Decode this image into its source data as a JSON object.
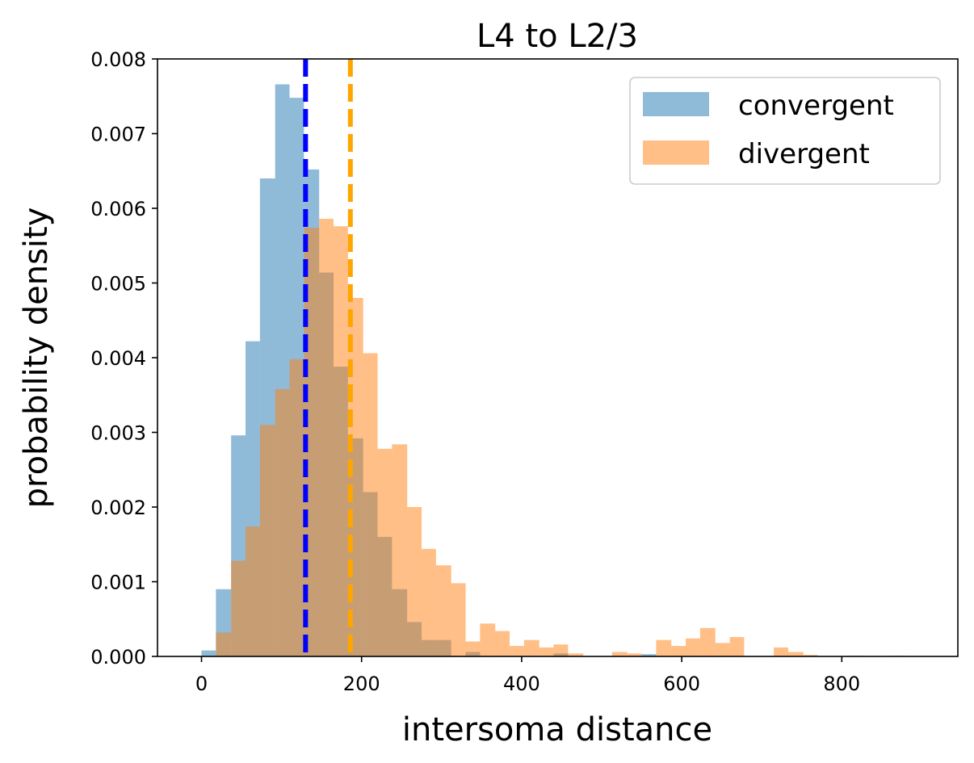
{
  "chart_data": {
    "type": "histogram",
    "title": "L4 to L2/3",
    "xlabel": "intersoma distance",
    "ylabel": "probability density",
    "xlim": [
      -55,
      945
    ],
    "ylim": [
      0,
      0.008
    ],
    "xticks": [
      0,
      200,
      400,
      600,
      800
    ],
    "xtick_labels": [
      "0",
      "200",
      "400",
      "600",
      "800"
    ],
    "yticks": [
      0.0,
      0.001,
      0.002,
      0.003,
      0.004,
      0.005,
      0.006,
      0.007,
      0.008
    ],
    "ytick_labels": [
      "0.000",
      "0.001",
      "0.002",
      "0.003",
      "0.004",
      "0.005",
      "0.006",
      "0.007",
      "0.008"
    ],
    "grid": false,
    "legend_position": "top-right",
    "series": [
      {
        "name": "convergent",
        "color": "#1f77b4",
        "opacity": 0.5,
        "bins": [
          {
            "x0": 0,
            "x1": 18,
            "y": 8e-05
          },
          {
            "x0": 18,
            "x1": 37,
            "y": 0.0009
          },
          {
            "x0": 37,
            "x1": 55,
            "y": 0.00296
          },
          {
            "x0": 55,
            "x1": 73,
            "y": 0.00422
          },
          {
            "x0": 73,
            "x1": 92,
            "y": 0.0064
          },
          {
            "x0": 92,
            "x1": 110,
            "y": 0.00766
          },
          {
            "x0": 110,
            "x1": 128,
            "y": 0.00748
          },
          {
            "x0": 128,
            "x1": 147,
            "y": 0.00652
          },
          {
            "x0": 147,
            "x1": 165,
            "y": 0.00514
          },
          {
            "x0": 165,
            "x1": 183,
            "y": 0.00388
          },
          {
            "x0": 183,
            "x1": 202,
            "y": 0.00292
          },
          {
            "x0": 202,
            "x1": 220,
            "y": 0.0022
          },
          {
            "x0": 220,
            "x1": 238,
            "y": 0.0016
          },
          {
            "x0": 238,
            "x1": 257,
            "y": 0.0009
          },
          {
            "x0": 257,
            "x1": 275,
            "y": 0.00046
          },
          {
            "x0": 275,
            "x1": 293,
            "y": 0.00022
          },
          {
            "x0": 293,
            "x1": 312,
            "y": 0.00022
          },
          {
            "x0": 330,
            "x1": 348,
            "y": 6e-05
          },
          {
            "x0": 440,
            "x1": 458,
            "y": 4e-05
          },
          {
            "x0": 550,
            "x1": 568,
            "y": 3e-05
          }
        ]
      },
      {
        "name": "divergent",
        "color": "#ff7f0e",
        "opacity": 0.5,
        "bins": [
          {
            "x0": 18,
            "x1": 37,
            "y": 0.00032
          },
          {
            "x0": 37,
            "x1": 55,
            "y": 0.00128
          },
          {
            "x0": 55,
            "x1": 73,
            "y": 0.00174
          },
          {
            "x0": 73,
            "x1": 92,
            "y": 0.0031
          },
          {
            "x0": 92,
            "x1": 110,
            "y": 0.00358
          },
          {
            "x0": 110,
            "x1": 128,
            "y": 0.00398
          },
          {
            "x0": 128,
            "x1": 147,
            "y": 0.00574
          },
          {
            "x0": 147,
            "x1": 165,
            "y": 0.00586
          },
          {
            "x0": 165,
            "x1": 183,
            "y": 0.00576
          },
          {
            "x0": 183,
            "x1": 202,
            "y": 0.0048
          },
          {
            "x0": 202,
            "x1": 220,
            "y": 0.00406
          },
          {
            "x0": 220,
            "x1": 238,
            "y": 0.00278
          },
          {
            "x0": 238,
            "x1": 257,
            "y": 0.00284
          },
          {
            "x0": 257,
            "x1": 275,
            "y": 0.002
          },
          {
            "x0": 275,
            "x1": 293,
            "y": 0.00144
          },
          {
            "x0": 293,
            "x1": 312,
            "y": 0.00122
          },
          {
            "x0": 312,
            "x1": 330,
            "y": 0.00098
          },
          {
            "x0": 330,
            "x1": 348,
            "y": 0.0002
          },
          {
            "x0": 348,
            "x1": 367,
            "y": 0.00044
          },
          {
            "x0": 367,
            "x1": 385,
            "y": 0.00034
          },
          {
            "x0": 385,
            "x1": 403,
            "y": 0.00014
          },
          {
            "x0": 403,
            "x1": 422,
            "y": 0.00022
          },
          {
            "x0": 422,
            "x1": 440,
            "y": 0.00012
          },
          {
            "x0": 440,
            "x1": 458,
            "y": 0.00016
          },
          {
            "x0": 458,
            "x1": 477,
            "y": 4e-05
          },
          {
            "x0": 513,
            "x1": 532,
            "y": 6e-05
          },
          {
            "x0": 532,
            "x1": 550,
            "y": 4e-05
          },
          {
            "x0": 568,
            "x1": 587,
            "y": 0.00022
          },
          {
            "x0": 587,
            "x1": 605,
            "y": 0.00014
          },
          {
            "x0": 605,
            "x1": 623,
            "y": 0.00024
          },
          {
            "x0": 623,
            "x1": 642,
            "y": 0.00038
          },
          {
            "x0": 642,
            "x1": 660,
            "y": 0.00018
          },
          {
            "x0": 660,
            "x1": 678,
            "y": 0.00026
          },
          {
            "x0": 715,
            "x1": 733,
            "y": 0.00012
          },
          {
            "x0": 733,
            "x1": 752,
            "y": 6e-05
          },
          {
            "x0": 752,
            "x1": 770,
            "y": 2e-05
          },
          {
            "x0": 807,
            "x1": 825,
            "y": 1e-05
          },
          {
            "x0": 862,
            "x1": 880,
            "y": 1e-05
          }
        ]
      }
    ],
    "vlines": [
      {
        "x": 130,
        "color": "#0000ff",
        "style": "dashed"
      },
      {
        "x": 186,
        "color": "#ffa500",
        "style": "dashed"
      }
    ]
  }
}
